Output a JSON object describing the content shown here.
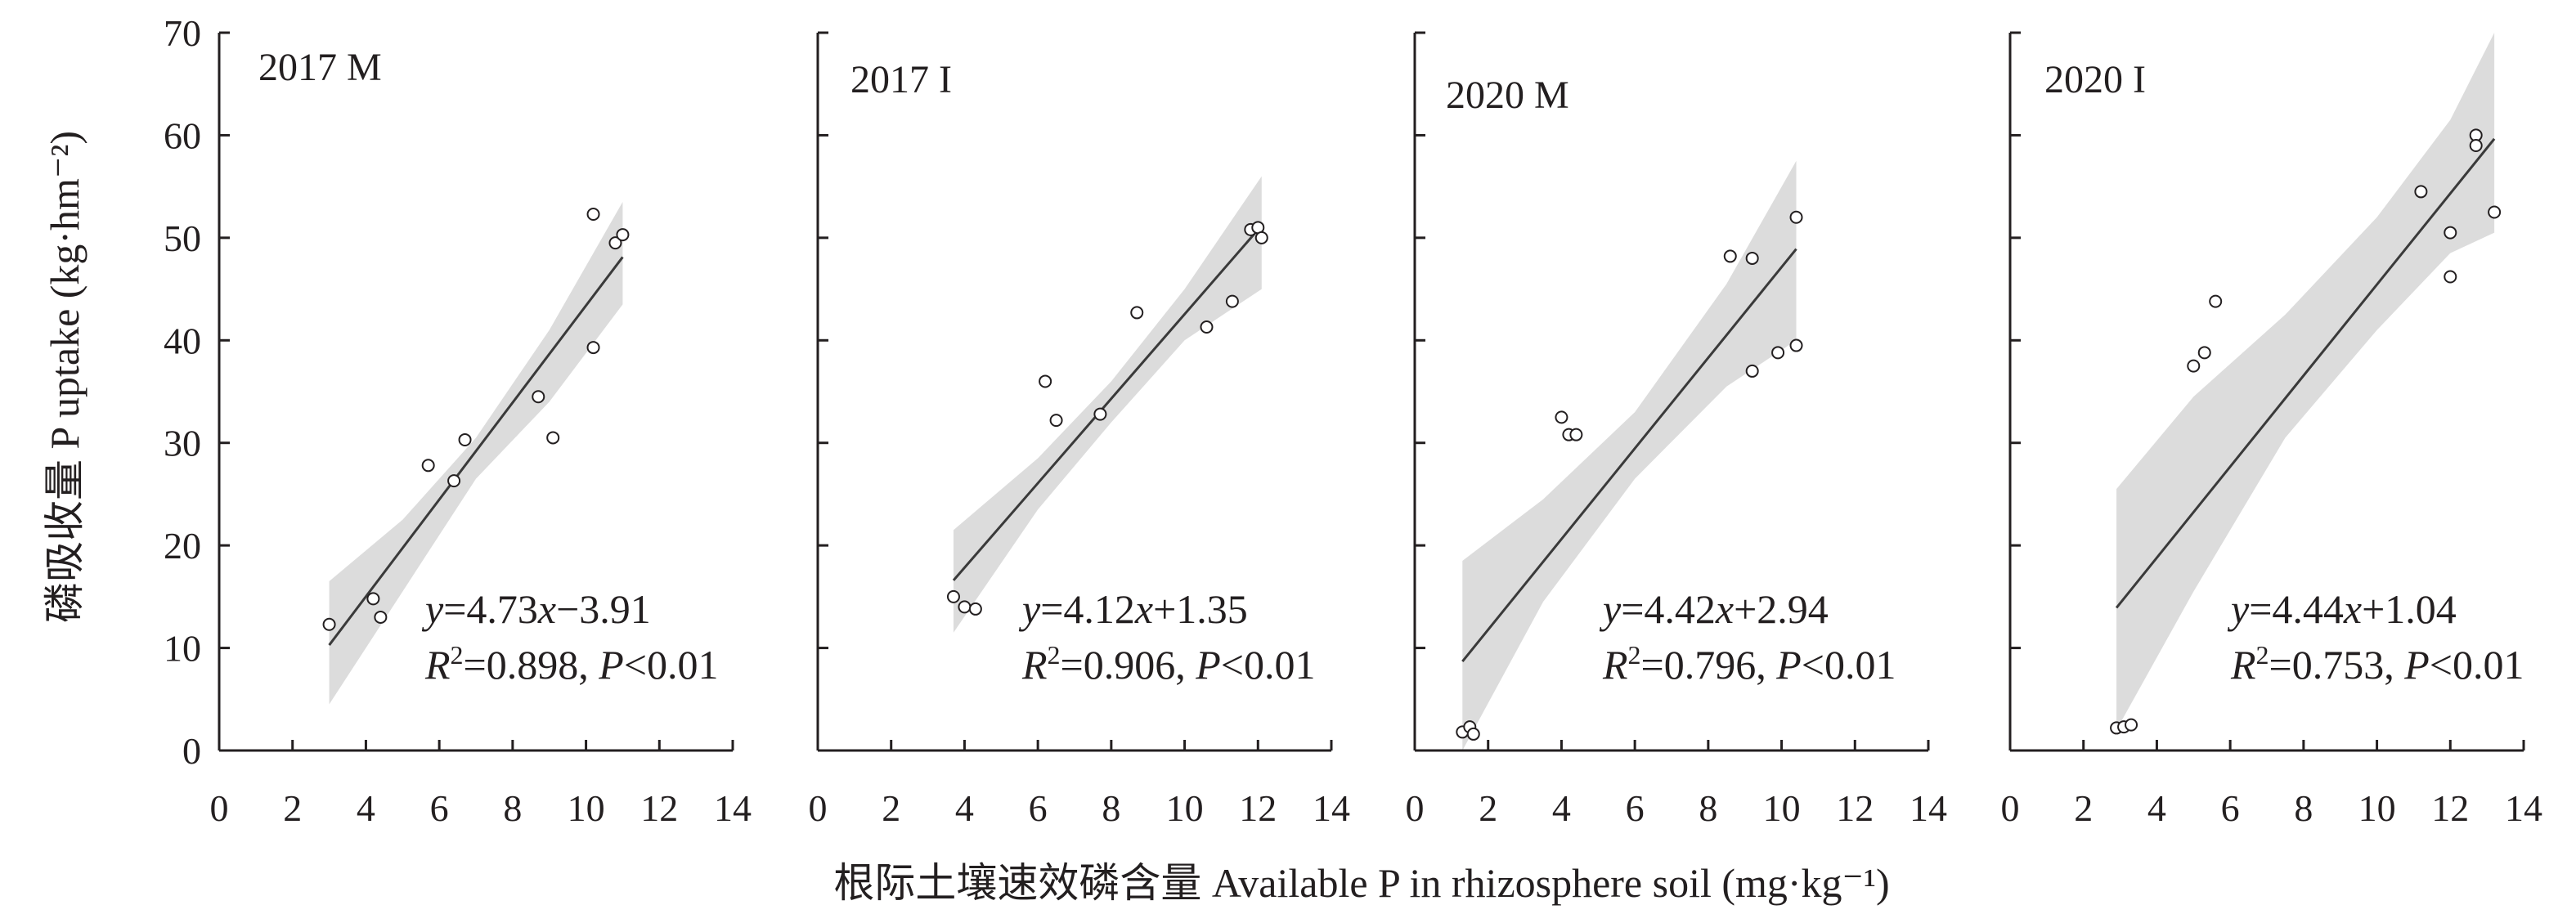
{
  "chart_data": {
    "type": "scatter",
    "xlabel": "根际土壤速效磷含量 Available P in rhizosphere soil (mg·kg⁻¹)",
    "ylabel": "磷吸收量 P uptake (kg·hm⁻²)",
    "xlim": [
      0,
      14
    ],
    "ylim": [
      0,
      70
    ],
    "xticks": [
      "0",
      "2",
      "4",
      "6",
      "8",
      "10",
      "12",
      "14"
    ],
    "yticks": [
      "0",
      "10",
      "20",
      "30",
      "40",
      "50",
      "60",
      "70"
    ],
    "grid": false,
    "panels": [
      {
        "label": "2017 M",
        "equation": "y=4.73x−3.91",
        "stats": "R2=0.898, P<0.01",
        "fit": {
          "slope": 4.73,
          "intercept": -3.91,
          "x_range": [
            3.0,
            11.0
          ]
        },
        "ci_upper": [
          [
            3.0,
            16.5
          ],
          [
            5.0,
            22.5
          ],
          [
            7.0,
            30.5
          ],
          [
            9.0,
            41.0
          ],
          [
            11.0,
            53.5
          ]
        ],
        "ci_lower": [
          [
            3.0,
            4.5
          ],
          [
            5.0,
            15.5
          ],
          [
            7.0,
            26.5
          ],
          [
            9.0,
            34.0
          ],
          [
            11.0,
            43.5
          ]
        ],
        "points": [
          [
            3.0,
            12.3
          ],
          [
            4.2,
            14.8
          ],
          [
            4.4,
            13.0
          ],
          [
            5.7,
            27.8
          ],
          [
            6.4,
            26.3
          ],
          [
            6.7,
            30.3
          ],
          [
            8.7,
            34.5
          ],
          [
            9.1,
            30.5
          ],
          [
            10.2,
            39.3
          ],
          [
            10.2,
            52.3
          ],
          [
            10.8,
            49.5
          ],
          [
            11.0,
            50.3
          ]
        ]
      },
      {
        "label": "2017 I",
        "equation": "y=4.12x+1.35",
        "stats": "R2=0.906, P<0.01",
        "fit": {
          "slope": 4.12,
          "intercept": 1.35,
          "x_range": [
            3.7,
            12.1
          ]
        },
        "ci_upper": [
          [
            3.7,
            21.5
          ],
          [
            6.0,
            28.5
          ],
          [
            8.0,
            36.0
          ],
          [
            10.0,
            45.0
          ],
          [
            12.1,
            56.0
          ]
        ],
        "ci_lower": [
          [
            3.7,
            11.5
          ],
          [
            6.0,
            23.5
          ],
          [
            8.0,
            32.0
          ],
          [
            10.0,
            40.0
          ],
          [
            12.1,
            45.0
          ]
        ],
        "points": [
          [
            3.7,
            15.0
          ],
          [
            4.0,
            14.0
          ],
          [
            4.3,
            13.8
          ],
          [
            6.2,
            36.0
          ],
          [
            6.5,
            32.2
          ],
          [
            7.7,
            32.8
          ],
          [
            8.7,
            42.7
          ],
          [
            10.6,
            41.3
          ],
          [
            11.3,
            43.8
          ],
          [
            11.8,
            50.8
          ],
          [
            12.0,
            51.0
          ],
          [
            12.1,
            50.0
          ]
        ]
      },
      {
        "label": "2020 M",
        "equation": "y=4.42x+2.94",
        "stats": "R2=0.796, P<0.01",
        "fit": {
          "slope": 4.42,
          "intercept": 2.94,
          "x_range": [
            1.3,
            10.4
          ]
        },
        "ci_upper": [
          [
            1.3,
            18.5
          ],
          [
            3.5,
            24.5
          ],
          [
            6.0,
            33.0
          ],
          [
            8.5,
            45.5
          ],
          [
            10.4,
            57.5
          ]
        ],
        "ci_lower": [
          [
            1.3,
            -1.0
          ],
          [
            3.5,
            14.5
          ],
          [
            6.0,
            26.5
          ],
          [
            8.5,
            35.5
          ],
          [
            10.4,
            40.0
          ]
        ],
        "points": [
          [
            1.3,
            1.8
          ],
          [
            1.5,
            2.3
          ],
          [
            1.6,
            1.6
          ],
          [
            4.0,
            32.5
          ],
          [
            4.2,
            30.8
          ],
          [
            4.4,
            30.8
          ],
          [
            8.6,
            48.2
          ],
          [
            9.2,
            48.0
          ],
          [
            9.2,
            37.0
          ],
          [
            9.9,
            38.8
          ],
          [
            10.4,
            52.0
          ],
          [
            10.4,
            39.5
          ]
        ]
      },
      {
        "label": "2020 I",
        "equation": "y=4.44x+1.04",
        "stats": "R2=0.753, P<0.01",
        "fit": {
          "slope": 4.44,
          "intercept": 1.04,
          "x_range": [
            2.9,
            13.2
          ]
        },
        "ci_upper": [
          [
            2.9,
            25.5
          ],
          [
            5.0,
            34.5
          ],
          [
            7.5,
            42.5
          ],
          [
            10.0,
            52.0
          ],
          [
            12.0,
            61.5
          ],
          [
            13.2,
            70.0
          ]
        ],
        "ci_lower": [
          [
            2.9,
            2.0
          ],
          [
            5.0,
            15.5
          ],
          [
            7.5,
            30.5
          ],
          [
            10.0,
            41.0
          ],
          [
            12.0,
            48.5
          ],
          [
            13.2,
            50.5
          ]
        ],
        "points": [
          [
            2.9,
            2.2
          ],
          [
            3.1,
            2.3
          ],
          [
            3.3,
            2.5
          ],
          [
            5.0,
            37.5
          ],
          [
            5.3,
            38.8
          ],
          [
            5.6,
            43.8
          ],
          [
            11.2,
            54.5
          ],
          [
            12.0,
            50.5
          ],
          [
            12.0,
            46.2
          ],
          [
            12.7,
            60.0
          ],
          [
            12.7,
            59.0
          ],
          [
            13.2,
            52.5
          ]
        ]
      }
    ]
  }
}
